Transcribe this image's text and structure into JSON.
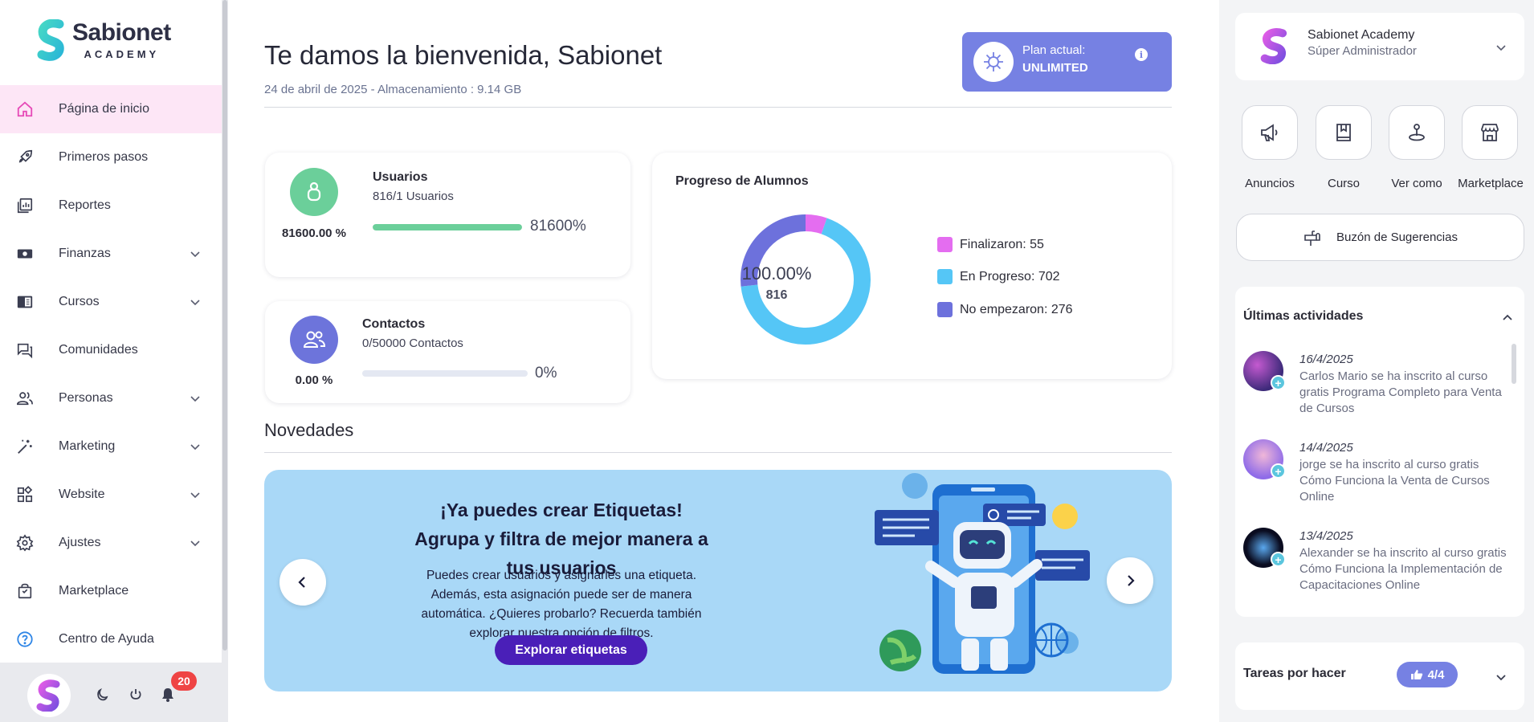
{
  "brand": {
    "name": "Sabionet",
    "sub": "ACADEMY"
  },
  "sidebar": {
    "items": [
      {
        "label": "Página de inicio",
        "icon": "home-icon",
        "active": true
      },
      {
        "label": "Primeros pasos",
        "icon": "rocket-icon"
      },
      {
        "label": "Reportes",
        "icon": "reports-icon"
      },
      {
        "label": "Finanzas",
        "icon": "money-icon",
        "expandable": true
      },
      {
        "label": "Cursos",
        "icon": "book-icon",
        "expandable": true
      },
      {
        "label": "Comunidades",
        "icon": "chat-icon"
      },
      {
        "label": "Personas",
        "icon": "people-icon",
        "expandable": true
      },
      {
        "label": "Marketing",
        "icon": "magic-wand-icon",
        "expandable": true
      },
      {
        "label": "Website",
        "icon": "grid-icon",
        "expandable": true
      },
      {
        "label": "Ajustes",
        "icon": "gear-icon",
        "expandable": true
      },
      {
        "label": "Marketplace",
        "icon": "shopping-bag-icon"
      },
      {
        "label": "Centro de Ayuda",
        "icon": "help-icon"
      }
    ],
    "notifications_count": "20"
  },
  "header": {
    "title": "Te damos la bienvenida, Sabionet",
    "subtitle": "24 de abril de 2025 - Almacenamiento : 9.14 GB",
    "plan_label": "Plan actual:",
    "plan_value": "UNLIMITED"
  },
  "stats": {
    "users": {
      "pct": "81600.00 %",
      "title": "Usuarios",
      "sub": "816/1 Usuarios",
      "bar_label": "81600%",
      "fill": 1.0
    },
    "contacts": {
      "pct": "0.00 %",
      "title": "Contactos",
      "sub": "0/50000 Contactos",
      "bar_label": "0%",
      "fill": 0.0
    }
  },
  "progress": {
    "title": "Progreso de Alumnos",
    "center_pct": "100.00%",
    "center_value": "816",
    "legend": [
      {
        "label": "Finalizaron: 55",
        "color": "#e46df0"
      },
      {
        "label": "En Progreso: 702",
        "color": "#55c6f6"
      },
      {
        "label": "No empezaron: 276",
        "color": "#6d71dc"
      }
    ]
  },
  "chart_data": {
    "type": "pie",
    "title": "Progreso de Alumnos",
    "categories": [
      "Finalizaron",
      "En Progreso",
      "No empezaron"
    ],
    "values": [
      55,
      702,
      276
    ],
    "colors": [
      "#e46df0",
      "#55c6f6",
      "#6d71dc"
    ],
    "donut": true
  },
  "news": {
    "title": "Novedades",
    "banner_heading": "¡Ya puedes crear Etiquetas! Agrupa y filtra de mejor manera a tus usuarios",
    "banner_text": "Puedes crear usuarios y asignarles una etiqueta. Además, esta asignación puede ser de manera automática. ¿Quieres probarlo? Recuerda también explorar nuestra opción de filtros.",
    "banner_button": "Explorar etiquetas"
  },
  "user_panel": {
    "name": "Sabionet Academy",
    "role": "Súper Administrador"
  },
  "quick_actions": [
    {
      "label": "Anuncios",
      "icon": "megaphone-icon"
    },
    {
      "label": "Curso",
      "icon": "book-icon"
    },
    {
      "label": "Ver como",
      "icon": "person-pin-icon"
    },
    {
      "label": "Marketplace",
      "icon": "store-icon"
    }
  ],
  "suggestions_label": "Buzón de Sugerencias",
  "activities": {
    "title": "Últimas actividades",
    "items": [
      {
        "date": "16/4/2025",
        "text": "Carlos Mario se ha inscrito al curso gratis Programa Completo para Venta de Cursos"
      },
      {
        "date": "14/4/2025",
        "text": "jorge se ha inscrito al curso gratis Cómo Funciona la Venta de Cursos Online"
      },
      {
        "date": "13/4/2025",
        "text": "Alexander se ha inscrito al curso gratis Cómo Funciona la Implementación de Capacitaciones Online"
      }
    ]
  },
  "tasks": {
    "title": "Tareas por hacer",
    "badge": "4/4"
  }
}
